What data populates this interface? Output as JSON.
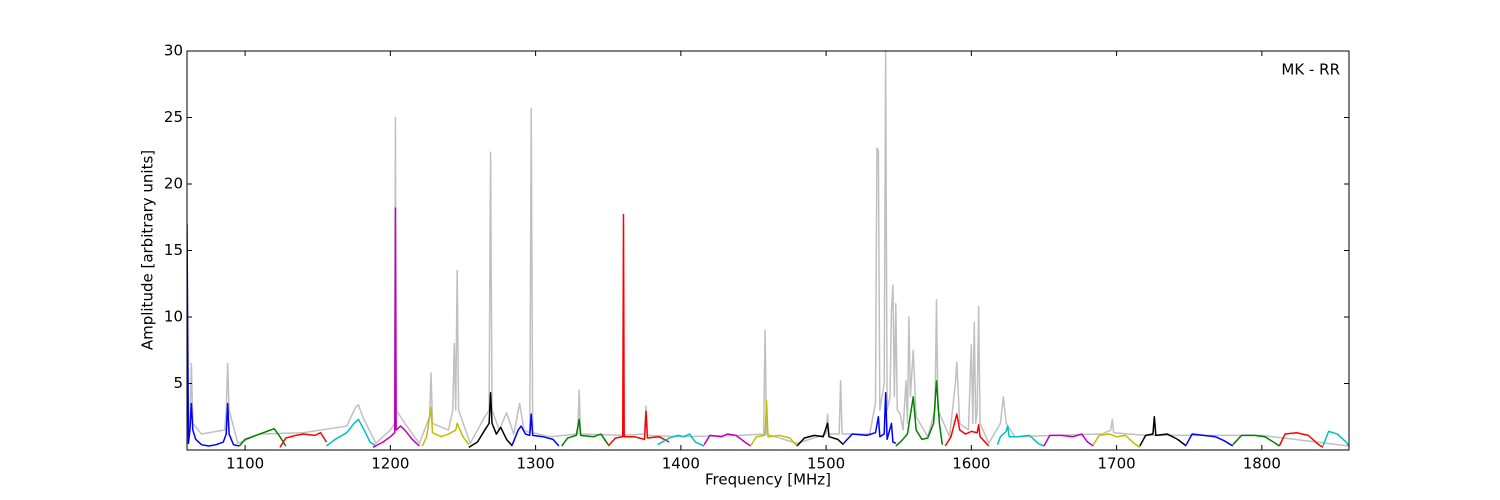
{
  "chart_data": {
    "type": "line",
    "xlabel": "Frequency [MHz]",
    "ylabel": "Amplitude [arbitrary units]",
    "annotation": "MK - RR",
    "xlim": [
      1060,
      1860
    ],
    "ylim": [
      0,
      30
    ],
    "xticks": [
      1100,
      1200,
      1300,
      1400,
      1500,
      1600,
      1700,
      1800
    ],
    "yticks": [
      5,
      10,
      15,
      20,
      25,
      30
    ],
    "series": [
      {
        "color": "#c0c0c0",
        "x": [
          1060,
          1062,
          1063,
          1064,
          1070,
          1086,
          1087,
          1088,
          1089,
          1095,
          1110,
          1140,
          1170,
          1176,
          1178,
          1181,
          1190,
          1200,
          1203,
          1203.5,
          1204,
          1210,
          1220,
          1227,
          1228,
          1229,
          1240,
          1243,
          1244,
          1245,
          1246,
          1247,
          1255,
          1265,
          1268,
          1269,
          1270,
          1275,
          1280,
          1285,
          1289,
          1292,
          1296,
          1297,
          1298,
          1310,
          1329,
          1330,
          1331,
          1360,
          1375,
          1376,
          1377,
          1400,
          1440,
          1457,
          1458,
          1459,
          1480,
          1500,
          1501,
          1502,
          1509,
          1510,
          1511,
          1530,
          1534,
          1535,
          1536,
          1537,
          1540,
          1541,
          1542,
          1544,
          1545,
          1546,
          1547,
          1548,
          1549,
          1551,
          1553,
          1555,
          1556,
          1557,
          1558,
          1560,
          1562,
          1570,
          1575,
          1576,
          1577,
          1585,
          1589,
          1590,
          1592,
          1598,
          1600,
          1601,
          1602,
          1603,
          1604,
          1605,
          1606,
          1612,
          1620,
          1622,
          1624,
          1630,
          1690,
          1696,
          1697,
          1698,
          1720,
          1800,
          1860
        ],
        "values": [
          0.5,
          2,
          6.5,
          2,
          1.2,
          1.5,
          3,
          6.5,
          3,
          0.5,
          1.2,
          1.3,
          1.8,
          3.2,
          3.4,
          2.5,
          0.5,
          1.5,
          2,
          25,
          3,
          2,
          0.5,
          2.5,
          5.8,
          2,
          1.5,
          3,
          8,
          3,
          13.5,
          3,
          0.5,
          2.5,
          3,
          22.4,
          3,
          1.5,
          2.8,
          1.2,
          3.5,
          1.5,
          1.3,
          25.7,
          1.3,
          1,
          1.2,
          4.5,
          1.2,
          1.1,
          1.2,
          3.3,
          1.1,
          1,
          1.1,
          1.2,
          9,
          1.2,
          0.5,
          1.2,
          2.7,
          1.2,
          1.2,
          5.2,
          1.2,
          1.2,
          3.5,
          22.7,
          22.5,
          3,
          5,
          30,
          3,
          4,
          10.5,
          12.4,
          4,
          11,
          3,
          2.7,
          1.5,
          5.2,
          2,
          10,
          4,
          7.5,
          2.5,
          1,
          3,
          11.3,
          3,
          1,
          5,
          6.6,
          2,
          1.5,
          7.9,
          2,
          9.6,
          2,
          3,
          10.8,
          2,
          0.5,
          2,
          4,
          2,
          1,
          1.2,
          1.5,
          2.3,
          1.3,
          1.1,
          1.1,
          0.3
        ]
      },
      {
        "color": "#0000ff",
        "x": [
          1060,
          1061,
          1062,
          1063,
          1064,
          1066,
          1070,
          1075,
          1080,
          1085,
          1087,
          1088,
          1089,
          1092,
          1096
        ],
        "values": [
          17,
          0.5,
          1.5,
          3.5,
          1.5,
          0.8,
          0.4,
          0.3,
          0.4,
          0.6,
          1.2,
          3.5,
          1.2,
          0.4,
          0.3
        ]
      },
      {
        "color": "#008000",
        "x": [
          1096,
          1100,
          1105,
          1110,
          1115,
          1120,
          1124,
          1128
        ],
        "values": [
          0.3,
          0.8,
          1.0,
          1.2,
          1.4,
          1.6,
          1.0,
          0.3
        ]
      },
      {
        "color": "#ff0000",
        "x": [
          1124,
          1128,
          1135,
          1140,
          1148,
          1152,
          1156
        ],
        "values": [
          0.2,
          0.9,
          1.1,
          1.2,
          1.1,
          1.3,
          0.6
        ]
      },
      {
        "color": "#00bfbf",
        "x": [
          1156,
          1162,
          1170,
          1175,
          1178,
          1182,
          1186,
          1190
        ],
        "values": [
          0.3,
          0.8,
          1.3,
          2.0,
          2.3,
          1.5,
          0.6,
          0.3
        ]
      },
      {
        "color": "#bf00bf",
        "x": [
          1188,
          1195,
          1200,
          1203,
          1203.5,
          1204,
          1207,
          1210,
          1215,
          1220
        ],
        "values": [
          0.2,
          0.6,
          1.0,
          1.3,
          18.2,
          1.5,
          1.8,
          1.5,
          0.8,
          0.3
        ]
      },
      {
        "color": "#bfbf00",
        "x": [
          1222,
          1225,
          1228,
          1229,
          1235,
          1240,
          1245,
          1246,
          1250,
          1254
        ],
        "values": [
          0.3,
          1.0,
          3.2,
          1.3,
          1.0,
          1.2,
          1.5,
          2.0,
          1.0,
          0.4
        ]
      },
      {
        "color": "#000000",
        "x": [
          1254,
          1260,
          1265,
          1268,
          1269,
          1270,
          1273,
          1276,
          1280,
          1284
        ],
        "values": [
          0.2,
          0.6,
          1.5,
          2.0,
          4.3,
          2.0,
          1.2,
          1.7,
          0.8,
          0.3
        ]
      },
      {
        "color": "#0000ff",
        "x": [
          1284,
          1288,
          1290,
          1293,
          1296,
          1297,
          1298,
          1305,
          1312,
          1316
        ],
        "values": [
          0.4,
          1.5,
          1.8,
          1.2,
          1.1,
          2.7,
          1.1,
          1.0,
          0.8,
          0.3
        ]
      },
      {
        "color": "#008000",
        "x": [
          1318,
          1322,
          1328,
          1330,
          1331,
          1340,
          1345,
          1350
        ],
        "values": [
          0.3,
          0.9,
          1.1,
          2.3,
          1.1,
          1.0,
          1.2,
          0.4
        ]
      },
      {
        "color": "#ff0000",
        "x": [
          1350,
          1355,
          1360,
          1360.5,
          1361,
          1368,
          1375,
          1376,
          1377,
          1385,
          1392
        ],
        "values": [
          0.3,
          0.9,
          1.0,
          17.7,
          1.0,
          1.0,
          0.8,
          2.9,
          0.9,
          1.0,
          0.6
        ]
      },
      {
        "color": "#00bfbf",
        "x": [
          1384,
          1392,
          1398,
          1402,
          1406,
          1410,
          1416
        ],
        "values": [
          0.4,
          0.9,
          1.1,
          1.0,
          1.2,
          0.6,
          0.3
        ]
      },
      {
        "color": "#bf00bf",
        "x": [
          1416,
          1420,
          1428,
          1432,
          1438,
          1444,
          1448
        ],
        "values": [
          0.4,
          1.1,
          1.0,
          1.2,
          1.1,
          0.6,
          0.3
        ]
      },
      {
        "color": "#bfbf00",
        "x": [
          1448,
          1452,
          1458,
          1459,
          1460,
          1468,
          1475,
          1480
        ],
        "values": [
          0.3,
          1.0,
          1.1,
          3.7,
          1.0,
          1.1,
          0.9,
          0.3
        ]
      },
      {
        "color": "#000000",
        "x": [
          1480,
          1485,
          1492,
          1498,
          1501,
          1502,
          1508,
          1512
        ],
        "values": [
          0.3,
          0.9,
          1.1,
          1.0,
          2.0,
          1.0,
          0.8,
          0.4
        ]
      },
      {
        "color": "#0000ff",
        "x": [
          1512,
          1518,
          1528,
          1534,
          1536,
          1537,
          1540,
          1541,
          1542,
          1545,
          1546,
          1548
        ],
        "values": [
          0.5,
          1.2,
          1.1,
          1.3,
          2.5,
          1.0,
          1.2,
          4.3,
          0.8,
          2.0,
          0.6,
          0.5
        ]
      },
      {
        "color": "#008000",
        "x": [
          1548,
          1552,
          1556,
          1560,
          1562,
          1566,
          1570,
          1574,
          1576,
          1578,
          1580
        ],
        "values": [
          0.3,
          0.7,
          1.2,
          4.0,
          1.5,
          0.8,
          0.9,
          2.0,
          5.2,
          2.0,
          0.4
        ]
      },
      {
        "color": "#ff0000",
        "x": [
          1582,
          1586,
          1590,
          1592,
          1596,
          1600,
          1604,
          1605,
          1606,
          1612
        ],
        "values": [
          0.3,
          1.0,
          2.7,
          1.5,
          1.2,
          1.4,
          1.3,
          1.9,
          1.0,
          0.3
        ]
      },
      {
        "color": "#00bfbf",
        "x": [
          1618,
          1620,
          1624,
          1625,
          1626,
          1632,
          1640,
          1646,
          1650
        ],
        "values": [
          0.4,
          1.0,
          1.4,
          1.8,
          1.0,
          1.0,
          1.1,
          0.5,
          0.3
        ]
      },
      {
        "color": "#bf00bf",
        "x": [
          1650,
          1654,
          1662,
          1670,
          1676,
          1680,
          1684
        ],
        "values": [
          0.3,
          1.1,
          1.1,
          1.0,
          1.2,
          0.6,
          0.3
        ]
      },
      {
        "color": "#bfbf00",
        "x": [
          1684,
          1688,
          1695,
          1700,
          1706,
          1712,
          1716
        ],
        "values": [
          0.4,
          1.1,
          1.2,
          1.0,
          1.1,
          0.5,
          0.2
        ]
      },
      {
        "color": "#000000",
        "x": [
          1716,
          1720,
          1725,
          1726,
          1727,
          1735,
          1742,
          1748
        ],
        "values": [
          0.3,
          1.1,
          1.2,
          2.5,
          1.1,
          1.2,
          0.8,
          0.3
        ]
      },
      {
        "color": "#0000ff",
        "x": [
          1748,
          1752,
          1760,
          1768,
          1774,
          1780
        ],
        "values": [
          0.4,
          1.2,
          1.1,
          1.0,
          0.7,
          0.3
        ]
      },
      {
        "color": "#008000",
        "x": [
          1780,
          1786,
          1795,
          1802,
          1808,
          1812
        ],
        "values": [
          0.4,
          1.1,
          1.1,
          1.0,
          0.6,
          0.3
        ]
      },
      {
        "color": "#ff0000",
        "x": [
          1812,
          1816,
          1824,
          1832,
          1838,
          1842
        ],
        "values": [
          0.3,
          1.2,
          1.3,
          1.1,
          0.5,
          0.2
        ]
      },
      {
        "color": "#00bfbf",
        "x": [
          1842,
          1846,
          1852,
          1858,
          1860
        ],
        "values": [
          0.3,
          1.4,
          1.2,
          0.6,
          0.3
        ]
      }
    ]
  }
}
